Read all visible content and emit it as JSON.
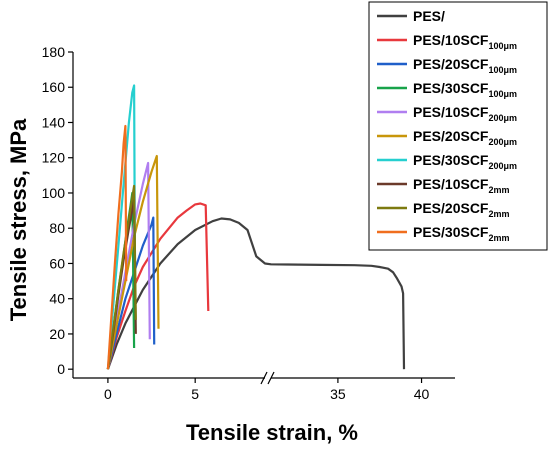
{
  "chart_data": {
    "type": "line",
    "xlabel": "Tensile strain, %",
    "ylabel": "Tensile stress, MPa",
    "ylim": [
      -5,
      180
    ],
    "y_ticks": [
      0,
      20,
      40,
      60,
      80,
      100,
      120,
      140,
      160,
      180
    ],
    "x_axis_break": {
      "from": 9,
      "to": 31
    },
    "x_segments": [
      {
        "range": [
          -2,
          9
        ],
        "ticks": [
          0,
          5
        ]
      },
      {
        "range": [
          31,
          42
        ],
        "ticks": [
          35,
          40
        ]
      }
    ],
    "legend": {
      "placement": "top-right",
      "border": true
    },
    "grid": false,
    "series": [
      {
        "name": "PES",
        "base": "PES/",
        "sub": "",
        "color": "#404040",
        "x": [
          0,
          0.5,
          1,
          2,
          3,
          4,
          5,
          6,
          6.5,
          7,
          7.5,
          8,
          8.5,
          9,
          31,
          32,
          34,
          36,
          37,
          37.5,
          38,
          38.3,
          38.5,
          38.8,
          38.9,
          38.95
        ],
        "y": [
          0,
          14,
          26,
          45,
          60,
          71,
          79,
          84,
          85.5,
          85,
          83,
          79,
          64,
          60,
          59.5,
          59.4,
          59.2,
          59,
          58.7,
          58,
          57,
          55,
          52,
          47,
          43,
          0
        ]
      },
      {
        "name": "PES/10SCF100μm",
        "base": "PES/10SCF",
        "sub": "100μm",
        "color": "#e8383d",
        "x": [
          0,
          0.5,
          1,
          1.5,
          2,
          3,
          4,
          4.5,
          5,
          5.3,
          5.6,
          5.75
        ],
        "y": [
          0,
          18,
          33,
          47,
          58,
          74,
          86,
          90,
          93.5,
          94,
          93,
          33
        ]
      },
      {
        "name": "PES/20SCF100μm",
        "base": "PES/20SCF",
        "sub": "100μm",
        "color": "#1f5fc9",
        "x": [
          0,
          0.5,
          1,
          1.5,
          2,
          2.5,
          2.6,
          2.65
        ],
        "y": [
          0,
          20,
          40,
          55,
          70,
          82,
          86,
          14
        ]
      },
      {
        "name": "PES/30SCF100μm",
        "base": "PES/30SCF",
        "sub": "100μm",
        "color": "#18a34a",
        "x": [
          0,
          0.3,
          0.6,
          0.9,
          1.1,
          1.3,
          1.4,
          1.5
        ],
        "y": [
          0,
          22,
          45,
          65,
          80,
          93,
          100,
          12
        ]
      },
      {
        "name": "PES/10SCF200μm",
        "base": "PES/10SCF",
        "sub": "200μm",
        "color": "#b07ef0",
        "x": [
          0,
          0.5,
          1,
          1.5,
          2,
          2.3,
          2.4
        ],
        "y": [
          0,
          28,
          55,
          82,
          105,
          117,
          17
        ]
      },
      {
        "name": "PES/20SCF200μm",
        "base": "PES/20SCF",
        "sub": "200μm",
        "color": "#c8960a",
        "x": [
          0,
          0.5,
          1,
          1.5,
          2,
          2.5,
          2.8,
          2.9
        ],
        "y": [
          0,
          25,
          50,
          75,
          95,
          112,
          121,
          23
        ]
      },
      {
        "name": "PES/30SCF200μm",
        "base": "PES/30SCF",
        "sub": "200μm",
        "color": "#25cfcf",
        "x": [
          0,
          0.3,
          0.6,
          0.9,
          1.2,
          1.4,
          1.5,
          1.55
        ],
        "y": [
          0,
          35,
          70,
          105,
          140,
          157,
          161,
          50
        ]
      },
      {
        "name": "PES/10SCF2mm",
        "base": "PES/10SCF",
        "sub": "2mm",
        "color": "#6b3a2a",
        "x": [
          0,
          0.3,
          0.6,
          0.9,
          1.2,
          1.5,
          1.6
        ],
        "y": [
          0,
          20,
          42,
          62,
          80,
          96,
          20
        ]
      },
      {
        "name": "PES/20SCF2mm",
        "base": "PES/20SCF",
        "sub": "2mm",
        "color": "#7d7a10",
        "x": [
          0,
          0.3,
          0.6,
          0.9,
          1.2,
          1.5,
          1.6
        ],
        "y": [
          0,
          22,
          45,
          66,
          85,
          104,
          28
        ]
      },
      {
        "name": "PES/30SCF2mm",
        "base": "PES/30SCF",
        "sub": "2mm",
        "color": "#f06e1e",
        "x": [
          0,
          0.2,
          0.4,
          0.6,
          0.8,
          0.9,
          1.0,
          1.05
        ],
        "y": [
          0,
          30,
          60,
          88,
          112,
          128,
          138,
          50
        ]
      }
    ]
  }
}
